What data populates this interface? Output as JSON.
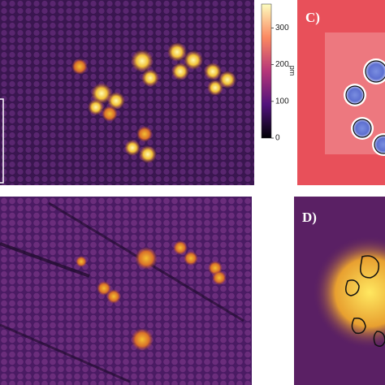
{
  "figure": {
    "colorbar": {
      "label": "pm",
      "lim": [
        0,
        365
      ],
      "ticks": [
        0,
        100,
        200,
        300
      ]
    },
    "panels": [
      {
        "label": "C)"
      },
      {
        "label": "D)"
      }
    ]
  }
}
